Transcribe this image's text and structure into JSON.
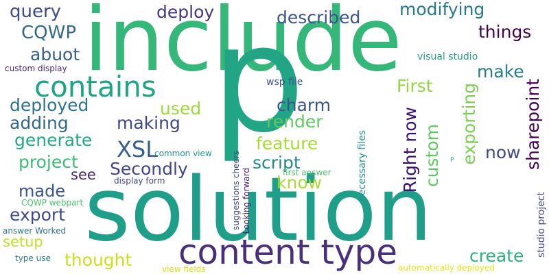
{
  "words": [
    {
      "text": "include",
      "color": "#35b779"
    },
    {
      "text": "p",
      "color": "#21a585"
    },
    {
      "text": "solution",
      "color": "#1f9e89"
    },
    {
      "text": "content type",
      "color": "#472f7d"
    },
    {
      "text": "contains",
      "color": "#20a486"
    },
    {
      "text": "query",
      "color": "#3e4989"
    },
    {
      "text": "CQWP",
      "color": "#31688e"
    },
    {
      "text": "abuot",
      "color": "#355f8d"
    },
    {
      "text": "deployed",
      "color": "#2c728e"
    },
    {
      "text": "adding",
      "color": "#30678d"
    },
    {
      "text": "generate",
      "color": "#22a884"
    },
    {
      "text": "project",
      "color": "#3dbc74"
    },
    {
      "text": "made",
      "color": "#39568c"
    },
    {
      "text": "export",
      "color": "#3e4a89"
    },
    {
      "text": "setup",
      "color": "#c2df23"
    },
    {
      "text": "thought",
      "color": "#c8e020"
    },
    {
      "text": "type use",
      "color": "#2a788e"
    },
    {
      "text": "answer Worked",
      "color": "#2e6f8e"
    },
    {
      "text": "CQWP webpart",
      "color": "#4ac16d"
    },
    {
      "text": "custom display",
      "color": "#482475"
    },
    {
      "text": "deploy",
      "color": "#453781"
    },
    {
      "text": "described",
      "color": "#3b528b"
    },
    {
      "text": "modifying",
      "color": "#29798e"
    },
    {
      "text": "things",
      "color": "#440154"
    },
    {
      "text": "visual studio",
      "color": "#1f9e89"
    },
    {
      "text": "make",
      "color": "#287d8e"
    },
    {
      "text": "First",
      "color": "#90d743"
    },
    {
      "text": "exporting",
      "color": "#7ad151"
    },
    {
      "text": "sharepoint",
      "color": "#440154"
    },
    {
      "text": "Right now",
      "color": "#3b0f70"
    },
    {
      "text": "custom",
      "color": "#5ec962"
    },
    {
      "text": "now",
      "color": "#3e4989"
    },
    {
      "text": "XSL",
      "color": "#355f8d"
    },
    {
      "text": "used",
      "color": "#a0da39"
    },
    {
      "text": "charm",
      "color": "#3b528b"
    },
    {
      "text": "making",
      "color": "#3f4788"
    },
    {
      "text": "render",
      "color": "#60ca60"
    },
    {
      "text": "feature",
      "color": "#a5db36"
    },
    {
      "text": "wsp file",
      "color": "#3a548c"
    },
    {
      "text": "script",
      "color": "#23898e"
    },
    {
      "text": "Secondly",
      "color": "#3f4788"
    },
    {
      "text": "see",
      "color": "#482475"
    },
    {
      "text": "know",
      "color": "#aadc32"
    },
    {
      "text": "display form",
      "color": "#414487"
    },
    {
      "text": "common view",
      "color": "#1f968b"
    },
    {
      "text": "first answer",
      "color": "#4ac16d"
    },
    {
      "text": "P",
      "color": "#21a585"
    },
    {
      "text": "create",
      "color": "#2db27d"
    },
    {
      "text": "automatically deployed",
      "color": "#e7e419"
    },
    {
      "text": "view fields",
      "color": "#d8e219"
    },
    {
      "text": "studio project",
      "color": "#3e4989"
    },
    {
      "text": "necessary files",
      "color": "#21918c"
    },
    {
      "text": "Looking forward",
      "color": "#481c6e"
    },
    {
      "text": "suggestions cheers",
      "color": "#3b528b"
    }
  ]
}
